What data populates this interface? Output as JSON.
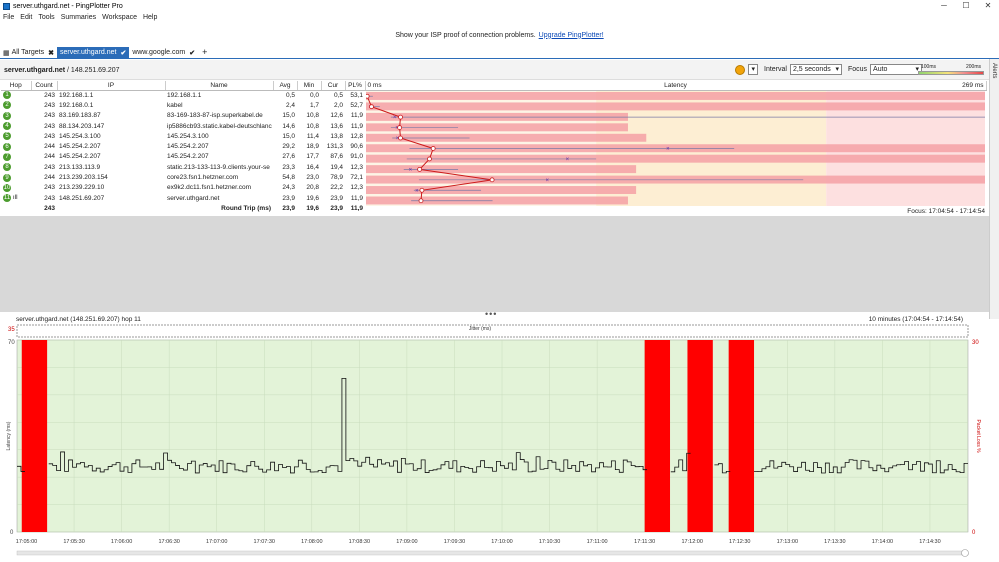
{
  "window": {
    "title": "server.uthgard.net - PingPlotter Pro"
  },
  "menu": [
    "File",
    "Edit",
    "Tools",
    "Summaries",
    "Workspace",
    "Help"
  ],
  "banner": {
    "text": "Show your ISP proof of connection problems.",
    "link": "Upgrade PingPlotter!"
  },
  "tabs": [
    {
      "label": "All Targets",
      "active": false
    },
    {
      "label": "server.uthgard.net",
      "active": true
    },
    {
      "label": "www.google.com",
      "active": false
    }
  ],
  "alerts_label": "Alerts",
  "target": {
    "name": "server.uthgard.net",
    "ip": "/ 148.251.69.207"
  },
  "controls": {
    "interval_label": "Interval",
    "interval_value": "2,5 seconds",
    "focus_label": "Focus",
    "focus_value": "Auto",
    "scale_a": "100ms",
    "scale_b": "200ms"
  },
  "columns": {
    "hop": "Hop",
    "count": "Count",
    "ip": "IP",
    "name": "Name",
    "avg": "Avg",
    "min": "Min",
    "cur": "Cur",
    "pl": "PL%",
    "lat0": "0 ms",
    "latency": "Latency",
    "latmax": "269 ms"
  },
  "hops": [
    {
      "hop": "1",
      "count": "243",
      "ip": "192.168.1.1",
      "name": "192.168.1.1",
      "avg": "0,5",
      "min": "0,0",
      "cur": "0,5",
      "pl": "53,1",
      "avgv": 0.5,
      "minv": 0,
      "maxv": 3,
      "curv": 0.5,
      "plv": 53.1
    },
    {
      "hop": "2",
      "count": "243",
      "ip": "192.168.0.1",
      "name": "kabel",
      "avg": "2,4",
      "min": "1,7",
      "cur": "2,0",
      "pl": "52,7",
      "avgv": 2.4,
      "minv": 1.7,
      "maxv": 6,
      "curv": 2.0,
      "plv": 52.7
    },
    {
      "hop": "3",
      "count": "243",
      "ip": "83.169.183.87",
      "name": "83-169-183-87-isp.superkabel.de",
      "avg": "15,0",
      "min": "10,8",
      "cur": "12,6",
      "pl": "11,9",
      "avgv": 15,
      "minv": 10.8,
      "maxv": 269,
      "curv": 12.6,
      "plv": 11.9
    },
    {
      "hop": "4",
      "count": "243",
      "ip": "88.134.203.147",
      "name": "ip5886cb93.static.kabel-deutschlanc",
      "avg": "14,6",
      "min": "10,8",
      "cur": "13,6",
      "pl": "11,9",
      "avgv": 14.6,
      "minv": 10.8,
      "maxv": 40,
      "curv": 13.6,
      "plv": 11.9
    },
    {
      "hop": "5",
      "count": "243",
      "ip": "145.254.3.100",
      "name": "145.254.3.100",
      "avg": "15,0",
      "min": "11,4",
      "cur": "13,8",
      "pl": "12,8",
      "avgv": 15,
      "minv": 11.4,
      "maxv": 45,
      "curv": 13.8,
      "plv": 12.8
    },
    {
      "hop": "6",
      "count": "244",
      "ip": "145.254.2.207",
      "name": "145.254.2.207",
      "avg": "29,2",
      "min": "18,9",
      "cur": "131,3",
      "pl": "90,6",
      "avgv": 29.2,
      "minv": 18.9,
      "maxv": 160,
      "curv": 131.3,
      "plv": 90.6
    },
    {
      "hop": "7",
      "count": "244",
      "ip": "145.254.2.207",
      "name": "145.254.2.207",
      "avg": "27,6",
      "min": "17,7",
      "cur": "87,6",
      "pl": "91,0",
      "avgv": 27.6,
      "minv": 17.7,
      "maxv": 100,
      "curv": 87.6,
      "plv": 91.0
    },
    {
      "hop": "8",
      "count": "243",
      "ip": "213.133.113.9",
      "name": "static.213-133-113-9.clients.your-se",
      "avg": "23,3",
      "min": "16,4",
      "cur": "19,4",
      "pl": "12,3",
      "avgv": 23.3,
      "minv": 16.4,
      "maxv": 40,
      "curv": 19.4,
      "plv": 12.3
    },
    {
      "hop": "9",
      "count": "244",
      "ip": "213.239.203.154",
      "name": "core23.fsn1.hetzner.com",
      "avg": "54,8",
      "min": "23,0",
      "cur": "78,9",
      "pl": "72,1",
      "avgv": 54.8,
      "minv": 23,
      "maxv": 190,
      "curv": 78.9,
      "plv": 72.1
    },
    {
      "hop": "10",
      "count": "243",
      "ip": "213.239.229.10",
      "name": "ex9k2.dc11.fsn1.hetzner.com",
      "avg": "24,3",
      "min": "20,8",
      "cur": "22,2",
      "pl": "12,3",
      "avgv": 24.3,
      "minv": 20.8,
      "maxv": 50,
      "curv": 22.2,
      "plv": 12.3
    },
    {
      "hop": "11",
      "count": "243",
      "ip": "148.251.69.207",
      "name": "server.uthgard.net",
      "avg": "23,9",
      "min": "19,6",
      "cur": "23,9",
      "pl": "11,9",
      "avgv": 23.9,
      "minv": 19.6,
      "maxv": 55,
      "curv": 23.9,
      "plv": 11.9
    }
  ],
  "footer": {
    "count": "243",
    "label": "Round Trip (ms)",
    "avg": "23,9",
    "min": "19,6",
    "cur": "23,9",
    "pl": "11,9"
  },
  "focus_text": "Focus: 17:04:54 - 17:14:54",
  "graph": {
    "title": "server.uthgard.net (148.251.69.207) hop 11",
    "range": "10 minutes (17:04:54 - 17:14:54)",
    "jitter_label": "Jitter (ms)",
    "jitter_top": "35",
    "y_max": "70",
    "y_min": "0",
    "pl_max": "30",
    "pl_min": "0",
    "y_label": "Latency (ms)",
    "pl_label": "Packet Loss %"
  },
  "chart_data": {
    "type": "line",
    "x_ticks": [
      "17:05:00",
      "17:05:30",
      "17:06:00",
      "17:06:30",
      "17:07:00",
      "17:07:30",
      "17:08:00",
      "17:08:30",
      "17:09:00",
      "17:09:30",
      "17:10:00",
      "17:10:30",
      "17:11:00",
      "17:11:30",
      "17:12:00",
      "17:12:30",
      "17:13:00",
      "17:13:30",
      "17:14:00",
      "17:14:30"
    ],
    "ylim": [
      0,
      70
    ],
    "y_ticks": [
      0,
      10,
      20,
      30,
      40,
      50,
      60,
      70
    ],
    "loss_bands_seconds": [
      [
        3,
        19
      ],
      [
        396,
        412
      ],
      [
        423,
        439
      ],
      [
        449,
        465
      ]
    ],
    "latency_base": 24,
    "spike_second": 205,
    "spike_value": 56
  }
}
